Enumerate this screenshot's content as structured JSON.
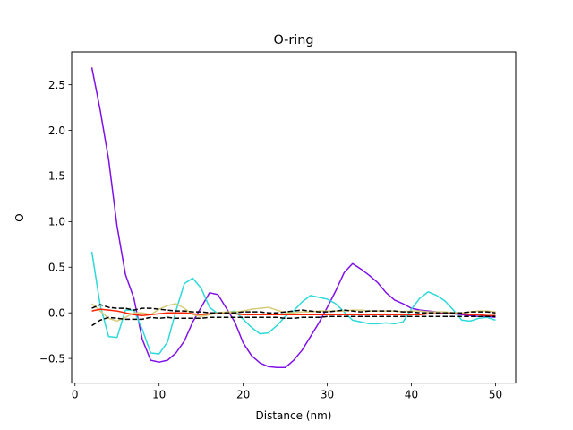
{
  "chart_data": {
    "type": "line",
    "title": "O-ring",
    "xlabel": "Distance (nm)",
    "ylabel": "O",
    "xlim": [
      -0.4,
      52.4
    ],
    "ylim": [
      -0.77,
      2.86
    ],
    "xticks": [
      0,
      10,
      20,
      30,
      40,
      50
    ],
    "yticks": [
      -0.5,
      0.0,
      0.5,
      1.0,
      1.5,
      2.0,
      2.5
    ],
    "xtick_labels": [
      "0",
      "10",
      "20",
      "30",
      "40",
      "50"
    ],
    "ytick_labels": [
      "−0.5",
      "0.0",
      "0.5",
      "1.0",
      "1.5",
      "2.0",
      "2.5"
    ],
    "grid": false,
    "legend": false,
    "series": [
      {
        "color": "#8010e8",
        "style": "solid",
        "x": [
          2,
          3,
          4,
          5,
          6,
          7,
          8,
          9,
          10,
          11,
          12,
          13,
          14,
          15,
          16,
          17,
          18,
          19,
          20,
          21,
          22,
          23,
          24,
          25,
          26,
          27,
          28,
          29,
          30,
          31,
          32,
          33,
          34,
          35,
          36,
          37,
          38,
          39,
          40,
          41,
          42,
          43,
          44,
          45,
          46,
          47,
          48,
          49,
          50
        ],
        "y": [
          2.69,
          2.22,
          1.68,
          0.95,
          0.42,
          0.16,
          -0.29,
          -0.52,
          -0.54,
          -0.52,
          -0.44,
          -0.31,
          -0.1,
          0.06,
          0.22,
          0.2,
          0.05,
          -0.1,
          -0.33,
          -0.47,
          -0.55,
          -0.59,
          -0.6,
          -0.6,
          -0.52,
          -0.41,
          -0.26,
          -0.11,
          0.06,
          0.24,
          0.44,
          0.54,
          0.48,
          0.41,
          0.33,
          0.22,
          0.14,
          0.1,
          0.05,
          0.03,
          0.02,
          0.01,
          0.0,
          -0.01,
          -0.02,
          -0.03,
          -0.04,
          -0.04,
          -0.05
        ]
      },
      {
        "color": "#2ed9d9",
        "style": "solid",
        "x": [
          2,
          3,
          4,
          5,
          6,
          7,
          8,
          9,
          10,
          11,
          12,
          13,
          14,
          15,
          16,
          17,
          18,
          19,
          20,
          21,
          22,
          23,
          24,
          25,
          26,
          27,
          28,
          29,
          30,
          31,
          32,
          33,
          34,
          35,
          36,
          37,
          38,
          39,
          40,
          41,
          42,
          43,
          44,
          45,
          46,
          47,
          48,
          49,
          50
        ],
        "y": [
          0.67,
          0.08,
          -0.26,
          -0.27,
          0.03,
          0.03,
          -0.18,
          -0.44,
          -0.45,
          -0.32,
          0.02,
          0.32,
          0.38,
          0.27,
          0.06,
          -0.01,
          0.0,
          0.02,
          -0.07,
          -0.16,
          -0.23,
          -0.22,
          -0.14,
          -0.04,
          0.02,
          0.12,
          0.19,
          0.17,
          0.15,
          0.1,
          0.01,
          -0.08,
          -0.1,
          -0.12,
          -0.12,
          -0.11,
          -0.12,
          -0.1,
          0.04,
          0.16,
          0.23,
          0.19,
          0.13,
          0.03,
          -0.08,
          -0.09,
          -0.06,
          -0.05,
          -0.08
        ]
      },
      {
        "color": "#d6cc7a",
        "style": "solid",
        "x": [
          2,
          3,
          4,
          5,
          6,
          7,
          8,
          9,
          10,
          11,
          12,
          13,
          14,
          15,
          16,
          17,
          18,
          19,
          20,
          21,
          22,
          23,
          24,
          25,
          26,
          27,
          28,
          29,
          30,
          31,
          32,
          33,
          34,
          35,
          36,
          37,
          38,
          39,
          40,
          41,
          42,
          43,
          44,
          45,
          46,
          47,
          48,
          49,
          50
        ],
        "y": [
          0.1,
          0.02,
          -0.06,
          -0.09,
          -0.05,
          0.0,
          0.0,
          -0.02,
          0.04,
          0.08,
          0.1,
          0.05,
          -0.02,
          -0.04,
          -0.02,
          0.0,
          0.01,
          0.01,
          0.02,
          0.04,
          0.05,
          0.06,
          0.03,
          0.0,
          0.0,
          0.01,
          0.01,
          0.02,
          0.02,
          0.02,
          0.02,
          0.03,
          0.03,
          0.02,
          0.02,
          0.02,
          0.02,
          0.01,
          0.02,
          0.02,
          0.01,
          0.01,
          0.01,
          0.0,
          0.0,
          0.01,
          0.02,
          0.02,
          0.01
        ]
      },
      {
        "color": "#ff2200",
        "style": "solid",
        "x": [
          2,
          3,
          4,
          5,
          6,
          7,
          8,
          9,
          10,
          11,
          12,
          13,
          14,
          15,
          16,
          17,
          18,
          19,
          20,
          21,
          22,
          23,
          24,
          25,
          26,
          27,
          28,
          29,
          30,
          31,
          32,
          33,
          34,
          35,
          36,
          37,
          38,
          39,
          40,
          41,
          42,
          43,
          44,
          45,
          46,
          47,
          48,
          49,
          50
        ],
        "y": [
          0.02,
          0.04,
          0.03,
          0.02,
          0.0,
          -0.02,
          -0.03,
          -0.02,
          -0.01,
          0.0,
          0.0,
          0.0,
          -0.01,
          -0.02,
          -0.01,
          -0.01,
          -0.01,
          -0.01,
          -0.02,
          -0.02,
          -0.02,
          -0.02,
          -0.02,
          -0.02,
          -0.02,
          -0.02,
          -0.02,
          -0.02,
          -0.02,
          -0.02,
          -0.02,
          -0.02,
          -0.02,
          -0.02,
          -0.02,
          -0.02,
          -0.02,
          -0.02,
          -0.02,
          -0.02,
          -0.01,
          -0.01,
          -0.01,
          -0.01,
          -0.01,
          -0.02,
          -0.02,
          -0.03,
          -0.03
        ]
      },
      {
        "color": "#000000",
        "style": "dashed",
        "x": [
          2,
          3,
          4,
          5,
          6,
          7,
          8,
          9,
          10,
          11,
          12,
          13,
          14,
          15,
          16,
          17,
          18,
          19,
          20,
          21,
          22,
          23,
          24,
          25,
          26,
          27,
          28,
          29,
          30,
          31,
          32,
          33,
          34,
          35,
          36,
          37,
          38,
          39,
          40,
          41,
          42,
          43,
          44,
          45,
          46,
          47,
          48,
          49,
          50
        ],
        "y": [
          0.05,
          0.09,
          0.06,
          0.05,
          0.05,
          0.03,
          0.05,
          0.05,
          0.04,
          0.03,
          0.02,
          0.02,
          0.01,
          0.01,
          0.0,
          0.0,
          0.0,
          0.0,
          0.01,
          0.01,
          0.01,
          0.0,
          0.0,
          0.01,
          0.02,
          0.03,
          0.02,
          0.01,
          0.01,
          0.02,
          0.03,
          0.02,
          0.01,
          0.02,
          0.02,
          0.02,
          0.02,
          0.01,
          0.01,
          0.0,
          0.0,
          0.0,
          0.0,
          0.0,
          0.0,
          0.01,
          0.01,
          0.01,
          0.0
        ]
      },
      {
        "color": "#000000",
        "style": "dashed",
        "x": [
          2,
          3,
          4,
          5,
          6,
          7,
          8,
          9,
          10,
          11,
          12,
          13,
          14,
          15,
          16,
          17,
          18,
          19,
          20,
          21,
          22,
          23,
          24,
          25,
          26,
          27,
          28,
          29,
          30,
          31,
          32,
          33,
          34,
          35,
          36,
          37,
          38,
          39,
          40,
          41,
          42,
          43,
          44,
          45,
          46,
          47,
          48,
          49,
          50
        ],
        "y": [
          -0.14,
          -0.08,
          -0.05,
          -0.06,
          -0.07,
          -0.07,
          -0.07,
          -0.05,
          -0.06,
          -0.05,
          -0.06,
          -0.06,
          -0.06,
          -0.06,
          -0.05,
          -0.05,
          -0.05,
          -0.05,
          -0.05,
          -0.05,
          -0.05,
          -0.05,
          -0.05,
          -0.06,
          -0.06,
          -0.05,
          -0.05,
          -0.05,
          -0.04,
          -0.04,
          -0.04,
          -0.04,
          -0.04,
          -0.04,
          -0.04,
          -0.04,
          -0.04,
          -0.04,
          -0.04,
          -0.04,
          -0.04,
          -0.04,
          -0.04,
          -0.04,
          -0.04,
          -0.04,
          -0.04,
          -0.04,
          -0.04
        ]
      }
    ]
  }
}
